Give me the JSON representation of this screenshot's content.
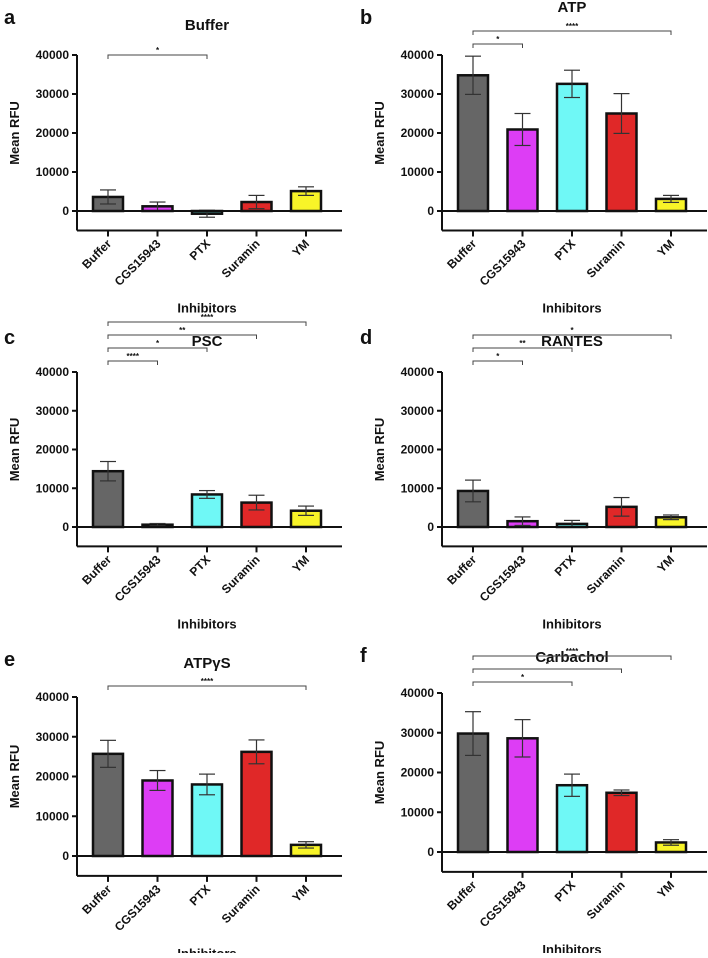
{
  "chart_data": [
    {
      "panel": "a",
      "type": "bar",
      "title": "Buffer",
      "xlabel": "Inhibitors",
      "ylabel": "Mean RFU",
      "ylim": [
        -5000,
        40000
      ],
      "yticks": [
        0,
        10000,
        20000,
        30000,
        40000
      ],
      "categories": [
        "Buffer",
        "CGS15943",
        "PTX",
        "Suramin",
        "YM"
      ],
      "values": [
        3600,
        1200,
        -700,
        2300,
        5100
      ],
      "errors": [
        1800,
        1100,
        900,
        1700,
        1100
      ],
      "significance": [
        {
          "from": "Buffer",
          "to": "PTX",
          "label": "*"
        }
      ]
    },
    {
      "panel": "b",
      "type": "bar",
      "title": "ATP",
      "xlabel": "Inhibitors",
      "ylabel": "Mean RFU",
      "ylim": [
        -5000,
        40000
      ],
      "yticks": [
        0,
        10000,
        20000,
        30000,
        40000
      ],
      "categories": [
        "Buffer",
        "CGS15943",
        "PTX",
        "Suramin",
        "YM"
      ],
      "values": [
        34800,
        20900,
        32600,
        25000,
        3100
      ],
      "errors": [
        4900,
        4100,
        3500,
        5100,
        900
      ],
      "significance": [
        {
          "from": "Buffer",
          "to": "CGS15943",
          "label": "*"
        },
        {
          "from": "Buffer",
          "to": "YM",
          "label": "****"
        }
      ]
    },
    {
      "panel": "c",
      "type": "bar",
      "title": "PSC",
      "xlabel": "Inhibitors",
      "ylabel": "Mean RFU",
      "ylim": [
        -5000,
        40000
      ],
      "yticks": [
        0,
        10000,
        20000,
        30000,
        40000
      ],
      "categories": [
        "Buffer",
        "CGS15943",
        "PTX",
        "Suramin",
        "YM"
      ],
      "values": [
        14400,
        600,
        8400,
        6300,
        4200
      ],
      "errors": [
        2500,
        300,
        1000,
        1900,
        1200
      ],
      "significance": [
        {
          "from": "Buffer",
          "to": "CGS15943",
          "label": "****"
        },
        {
          "from": "Buffer",
          "to": "PTX",
          "label": "*"
        },
        {
          "from": "Buffer",
          "to": "Suramin",
          "label": "**"
        },
        {
          "from": "Buffer",
          "to": "YM",
          "label": "****"
        }
      ]
    },
    {
      "panel": "d",
      "type": "bar",
      "title": "RANTES",
      "xlabel": "Inhibitors",
      "ylabel": "Mean RFU",
      "ylim": [
        -5000,
        40000
      ],
      "yticks": [
        0,
        10000,
        20000,
        30000,
        40000
      ],
      "categories": [
        "Buffer",
        "CGS15943",
        "PTX",
        "Suramin",
        "YM"
      ],
      "values": [
        9300,
        1500,
        800,
        5200,
        2500
      ],
      "errors": [
        2800,
        1100,
        900,
        2400,
        600
      ],
      "significance": [
        {
          "from": "Buffer",
          "to": "CGS15943",
          "label": "*"
        },
        {
          "from": "Buffer",
          "to": "PTX",
          "label": "**"
        },
        {
          "from": "Buffer",
          "to": "YM",
          "label": "*"
        }
      ]
    },
    {
      "panel": "e",
      "type": "bar",
      "title": "ATPγS",
      "xlabel": "Inhibitors",
      "ylabel": "Mean RFU",
      "ylim": [
        -5000,
        40000
      ],
      "yticks": [
        0,
        10000,
        20000,
        30000,
        40000
      ],
      "categories": [
        "Buffer",
        "CGS15943",
        "PTX",
        "Suramin",
        "YM"
      ],
      "values": [
        25700,
        19000,
        18000,
        26200,
        2800
      ],
      "errors": [
        3400,
        2500,
        2600,
        3000,
        800
      ],
      "significance": [
        {
          "from": "Buffer",
          "to": "YM",
          "label": "****"
        }
      ]
    },
    {
      "panel": "f",
      "type": "bar",
      "title": "Carbachol",
      "xlabel": "Inhibitors",
      "ylabel": "Mean RFU",
      "ylim": [
        -5000,
        40000
      ],
      "yticks": [
        0,
        10000,
        20000,
        30000,
        40000
      ],
      "categories": [
        "Buffer",
        "CGS15943",
        "PTX",
        "Suramin",
        "YM"
      ],
      "values": [
        29800,
        28600,
        16800,
        14900,
        2400
      ],
      "errors": [
        5500,
        4700,
        2800,
        700,
        700
      ],
      "significance": [
        {
          "from": "Buffer",
          "to": "PTX",
          "label": "*"
        },
        {
          "from": "Buffer",
          "to": "Suramin",
          "label": "*"
        },
        {
          "from": "Buffer",
          "to": "YM",
          "label": "****"
        }
      ]
    }
  ],
  "colors": {
    "Buffer": "#666666",
    "CGS15943": "#dd3df5",
    "PTX": "#6ff8f6",
    "Suramin": "#e02828",
    "YM": "#f8f428"
  }
}
